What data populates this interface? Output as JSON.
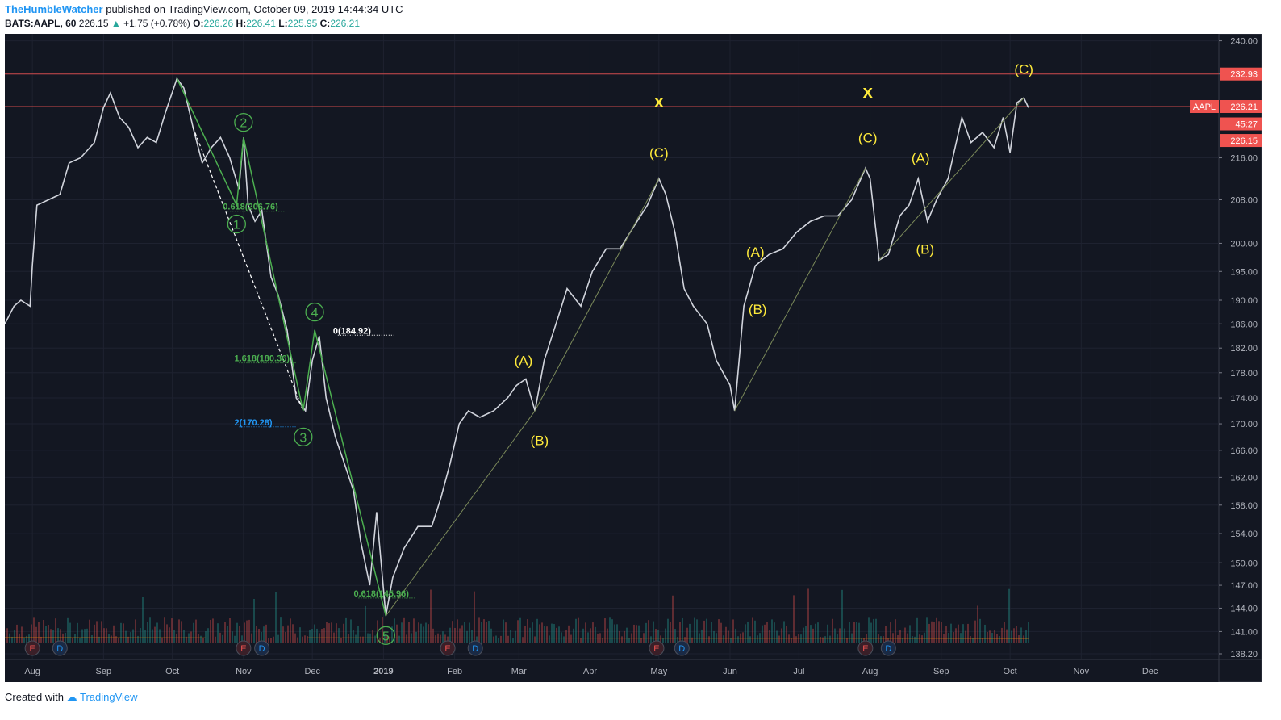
{
  "header": {
    "author": "TheHumbleWatcher",
    "published": "published on TradingView.com, October 09, 2019 14:44:34 UTC",
    "symbol": "BATS:AAPL, 60",
    "last": "226.15",
    "change": "+1.75 (+0.78%)",
    "o_label": "O:",
    "o": "226.26",
    "h_label": "H:",
    "h": "226.41",
    "l_label": "L:",
    "l": "225.95",
    "c_label": "C:",
    "c": "226.21"
  },
  "footer": {
    "created_with": "Created with",
    "brand": "TradingView"
  },
  "colors": {
    "background": "#131722",
    "up": "#26a69a",
    "down": "#ef5350",
    "wave_green": "#4caf50",
    "wave_yellow": "#ffeb3b",
    "price_tag": "#ef5350"
  },
  "chart_data": {
    "type": "line",
    "yscale": "log",
    "ylim": [
      137.5,
      241.5
    ],
    "y_ticks": [
      138.2,
      141.0,
      144.0,
      147.0,
      150.0,
      154.0,
      158.0,
      162.0,
      166.0,
      170.0,
      174.0,
      178.0,
      182.0,
      186.0,
      190.0,
      195.0,
      200.0,
      208.0,
      216.0,
      232.93,
      240.0
    ],
    "y_tick_labels": [
      "138.20",
      "141.00",
      "144.00",
      "147.00",
      "150.00",
      "154.00",
      "158.00",
      "162.00",
      "166.00",
      "170.00",
      "174.00",
      "178.00",
      "182.00",
      "186.00",
      "190.00",
      "195.00",
      "200.00",
      "208.00",
      "216.00",
      "232.93",
      "240.00"
    ],
    "x_range": [
      "2018-07-20",
      "2019-12-31"
    ],
    "x_tick_dates": [
      "2018-08-01",
      "2018-09-01",
      "2018-10-01",
      "2018-11-01",
      "2018-12-01",
      "2019-01-01",
      "2019-02-01",
      "2019-03-01",
      "2019-04-01",
      "2019-05-01",
      "2019-06-01",
      "2019-07-01",
      "2019-08-01",
      "2019-09-01",
      "2019-10-01",
      "2019-11-01",
      "2019-12-01"
    ],
    "x_tick_labels": [
      "Aug",
      "Sep",
      "Oct",
      "Nov",
      "Dec",
      "2019",
      "Feb",
      "Mar",
      "Apr",
      "May",
      "Jun",
      "Jul",
      "Aug",
      "Sep",
      "Oct",
      "Nov",
      "Dec"
    ],
    "price": [
      [
        "2018-07-20",
        186
      ],
      [
        "2018-07-24",
        189
      ],
      [
        "2018-07-27",
        190
      ],
      [
        "2018-07-31",
        189
      ],
      [
        "2018-08-01",
        196
      ],
      [
        "2018-08-03",
        207
      ],
      [
        "2018-08-08",
        208
      ],
      [
        "2018-08-13",
        209
      ],
      [
        "2018-08-17",
        215
      ],
      [
        "2018-08-22",
        216
      ],
      [
        "2018-08-28",
        219
      ],
      [
        "2018-09-01",
        226
      ],
      [
        "2018-09-04",
        229
      ],
      [
        "2018-09-08",
        224
      ],
      [
        "2018-09-12",
        222
      ],
      [
        "2018-09-16",
        218
      ],
      [
        "2018-09-20",
        220
      ],
      [
        "2018-09-24",
        219
      ],
      [
        "2018-09-28",
        225
      ],
      [
        "2018-10-03",
        232
      ],
      [
        "2018-10-06",
        230
      ],
      [
        "2018-10-10",
        222
      ],
      [
        "2018-10-14",
        215
      ],
      [
        "2018-10-18",
        218
      ],
      [
        "2018-10-22",
        220
      ],
      [
        "2018-10-26",
        216
      ],
      [
        "2018-10-30",
        210
      ],
      [
        "2018-11-01",
        220
      ],
      [
        "2018-11-03",
        207
      ],
      [
        "2018-11-06",
        204
      ],
      [
        "2018-11-09",
        206
      ],
      [
        "2018-11-13",
        194
      ],
      [
        "2018-11-16",
        191
      ],
      [
        "2018-11-20",
        185
      ],
      [
        "2018-11-24",
        174
      ],
      [
        "2018-11-28",
        172
      ],
      [
        "2018-12-01",
        180
      ],
      [
        "2018-12-04",
        184
      ],
      [
        "2018-12-07",
        174
      ],
      [
        "2018-12-11",
        168
      ],
      [
        "2018-12-14",
        165
      ],
      [
        "2018-12-19",
        160
      ],
      [
        "2018-12-22",
        153
      ],
      [
        "2018-12-26",
        147
      ],
      [
        "2018-12-29",
        157
      ],
      [
        "2019-01-02",
        143
      ],
      [
        "2019-01-05",
        148
      ],
      [
        "2019-01-10",
        152
      ],
      [
        "2019-01-16",
        155
      ],
      [
        "2019-01-22",
        155
      ],
      [
        "2019-01-26",
        159
      ],
      [
        "2019-01-30",
        164
      ],
      [
        "2019-02-03",
        170
      ],
      [
        "2019-02-07",
        172
      ],
      [
        "2019-02-12",
        171
      ],
      [
        "2019-02-18",
        172
      ],
      [
        "2019-02-24",
        174
      ],
      [
        "2019-02-28",
        176
      ],
      [
        "2019-03-04",
        177
      ],
      [
        "2019-03-08",
        172
      ],
      [
        "2019-03-12",
        180
      ],
      [
        "2019-03-18",
        187
      ],
      [
        "2019-03-22",
        192
      ],
      [
        "2019-03-28",
        189
      ],
      [
        "2019-04-02",
        195
      ],
      [
        "2019-04-08",
        199
      ],
      [
        "2019-04-14",
        199
      ],
      [
        "2019-04-20",
        203
      ],
      [
        "2019-04-26",
        207
      ],
      [
        "2019-05-01",
        212
      ],
      [
        "2019-05-04",
        209
      ],
      [
        "2019-05-08",
        202
      ],
      [
        "2019-05-12",
        192
      ],
      [
        "2019-05-16",
        189
      ],
      [
        "2019-05-22",
        186
      ],
      [
        "2019-05-26",
        180
      ],
      [
        "2019-06-01",
        176
      ],
      [
        "2019-06-03",
        172
      ],
      [
        "2019-06-07",
        189
      ],
      [
        "2019-06-12",
        196
      ],
      [
        "2019-06-18",
        198
      ],
      [
        "2019-06-24",
        199
      ],
      [
        "2019-06-30",
        202
      ],
      [
        "2019-07-06",
        204
      ],
      [
        "2019-07-12",
        205
      ],
      [
        "2019-07-18",
        205
      ],
      [
        "2019-07-24",
        208
      ],
      [
        "2019-07-30",
        214
      ],
      [
        "2019-08-01",
        212
      ],
      [
        "2019-08-05",
        197
      ],
      [
        "2019-08-09",
        198
      ],
      [
        "2019-08-14",
        205
      ],
      [
        "2019-08-18",
        207
      ],
      [
        "2019-08-22",
        212
      ],
      [
        "2019-08-26",
        204
      ],
      [
        "2019-08-30",
        208
      ],
      [
        "2019-09-04",
        212
      ],
      [
        "2019-09-10",
        224
      ],
      [
        "2019-09-14",
        219
      ],
      [
        "2019-09-19",
        221
      ],
      [
        "2019-09-24",
        218
      ],
      [
        "2019-09-28",
        224
      ],
      [
        "2019-10-01",
        217
      ],
      [
        "2019-10-04",
        227
      ],
      [
        "2019-10-07",
        228
      ],
      [
        "2019-10-09",
        226
      ]
    ],
    "wave_green": {
      "line": [
        [
          "2018-10-03",
          232
        ],
        [
          "2018-10-29",
          207
        ],
        [
          "2018-11-01",
          220
        ],
        [
          "2018-11-27",
          172
        ],
        [
          "2018-12-02",
          185
        ],
        [
          "2019-01-02",
          143
        ]
      ],
      "labels": [
        {
          "text": "2",
          "date": "2018-11-01",
          "y": 223
        },
        {
          "text": "1",
          "date": "2018-10-29",
          "y": 203.5
        },
        {
          "text": "4",
          "date": "2018-12-02",
          "y": 188
        },
        {
          "text": "3",
          "date": "2018-11-27",
          "y": 168
        },
        {
          "text": "5",
          "date": "2019-01-02",
          "y": 140.5
        }
      ],
      "dashed_line": [
        [
          "2018-10-10",
          222
        ],
        [
          "2018-11-27",
          172
        ]
      ]
    },
    "wave_yellow_labels": [
      {
        "text": "(A)",
        "date": "2019-03-03",
        "y": 180
      },
      {
        "text": "(B)",
        "date": "2019-03-10",
        "y": 167.5
      },
      {
        "text": "(C)",
        "date": "2019-05-01",
        "y": 217
      },
      {
        "text": "x",
        "date": "2019-05-01",
        "y": 227
      },
      {
        "text": "(A)",
        "date": "2019-06-12",
        "y": 198.5
      },
      {
        "text": "(B)",
        "date": "2019-06-13",
        "y": 188.5
      },
      {
        "text": "(C)",
        "date": "2019-07-31",
        "y": 220
      },
      {
        "text": "x",
        "date": "2019-07-31",
        "y": 229
      },
      {
        "text": "(A)",
        "date": "2019-08-23",
        "y": 216
      },
      {
        "text": "(B)",
        "date": "2019-08-25",
        "y": 199
      },
      {
        "text": "(C)",
        "date": "2019-10-07",
        "y": 234
      }
    ],
    "thin_connectors": [
      [
        [
          "2019-01-02",
          143
        ],
        [
          "2019-03-08",
          172
        ]
      ],
      [
        [
          "2019-03-08",
          172
        ],
        [
          "2019-05-01",
          212
        ]
      ],
      [
        [
          "2019-06-03",
          172
        ],
        [
          "2019-07-30",
          214
        ]
      ],
      [
        [
          "2019-08-05",
          197
        ],
        [
          "2019-10-07",
          228
        ]
      ]
    ],
    "fib_labels": [
      {
        "text": "0.618(206.76)",
        "date": "2018-10-23",
        "y": 206.76,
        "color": "#4caf50"
      },
      {
        "text": "0(184.92)",
        "date": "2018-12-10",
        "y": 184.92,
        "color": "#ffffff"
      },
      {
        "text": "1.618(180.36)",
        "date": "2018-10-28",
        "y": 180.36,
        "color": "#4caf50"
      },
      {
        "text": "2(170.28)",
        "date": "2018-10-28",
        "y": 170.28,
        "color": "#2196f3"
      },
      {
        "text": "0.618(145.96)",
        "date": "2018-12-19",
        "y": 145.96,
        "color": "#4caf50"
      }
    ],
    "horizontal_lines": [
      232.93,
      226.21
    ],
    "price_tags": [
      {
        "label": "",
        "value": "232.93",
        "y": 232.93
      },
      {
        "label": "AAPL",
        "value": "226.21",
        "y": 226.21
      },
      {
        "label": "",
        "value": "45:27",
        "y": 222.7
      },
      {
        "label": "",
        "value": "226.15",
        "y": 219.4
      }
    ],
    "events": [
      {
        "type": "E",
        "date": "2018-08-01"
      },
      {
        "type": "D",
        "date": "2018-08-13"
      },
      {
        "type": "E",
        "date": "2018-11-01"
      },
      {
        "type": "D",
        "date": "2018-11-09"
      },
      {
        "type": "E",
        "date": "2019-01-29"
      },
      {
        "type": "D",
        "date": "2019-02-10"
      },
      {
        "type": "E",
        "date": "2019-04-30"
      },
      {
        "type": "D",
        "date": "2019-05-11"
      },
      {
        "type": "E",
        "date": "2019-07-30"
      },
      {
        "type": "D",
        "date": "2019-08-09"
      }
    ]
  }
}
